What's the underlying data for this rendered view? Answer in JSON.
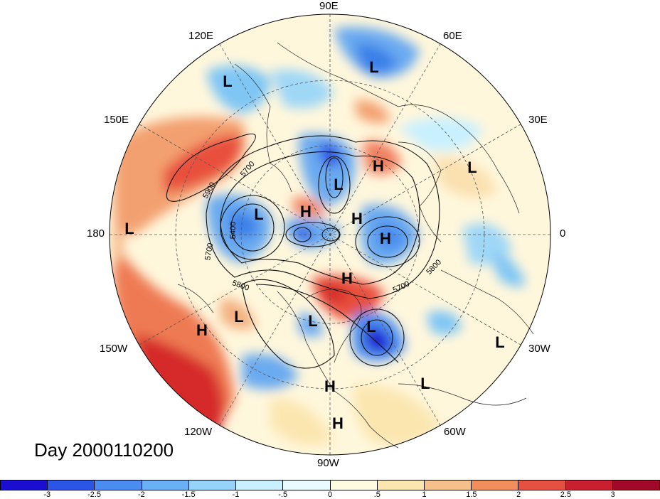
{
  "longitude_labels": {
    "lon_90e": "90E",
    "lon_60e": "60E",
    "lon_120e": "120E",
    "lon_150e": "150E",
    "lon_30e": "30E",
    "lon_180": "180",
    "lon_0": "0",
    "lon_150w": "150W",
    "lon_30w": "30W",
    "lon_120w": "120W",
    "lon_60w": "60W",
    "lon_90w": "90W"
  },
  "contour_labels": [
    "5900",
    "5700",
    "5400",
    "5700",
    "5800",
    "5800",
    "5700"
  ],
  "pressure_centers": [
    "L",
    "L",
    "H",
    "L",
    "L",
    "H",
    "H",
    "L",
    "L",
    "H",
    "H",
    "L",
    "L",
    "L",
    "H",
    "L",
    "H",
    "L",
    "H",
    "L"
  ],
  "title": "Day 2000110200",
  "colorbar": {
    "ticks": [
      "-3",
      "-2.5",
      "-2",
      "-1.5",
      "-1",
      "-.5",
      "0",
      ".5",
      "1",
      "1.5",
      "2",
      "2.5",
      "3"
    ],
    "colors": [
      "#1a0fd0",
      "#2a55e6",
      "#4a8cf0",
      "#6ab0f5",
      "#96d3fa",
      "#c8f0ff",
      "#e8fbff",
      "#fffbe0",
      "#fbe6b0",
      "#f5c08a",
      "#f08e5c",
      "#e65040",
      "#c82030",
      "#a00a28"
    ]
  }
}
